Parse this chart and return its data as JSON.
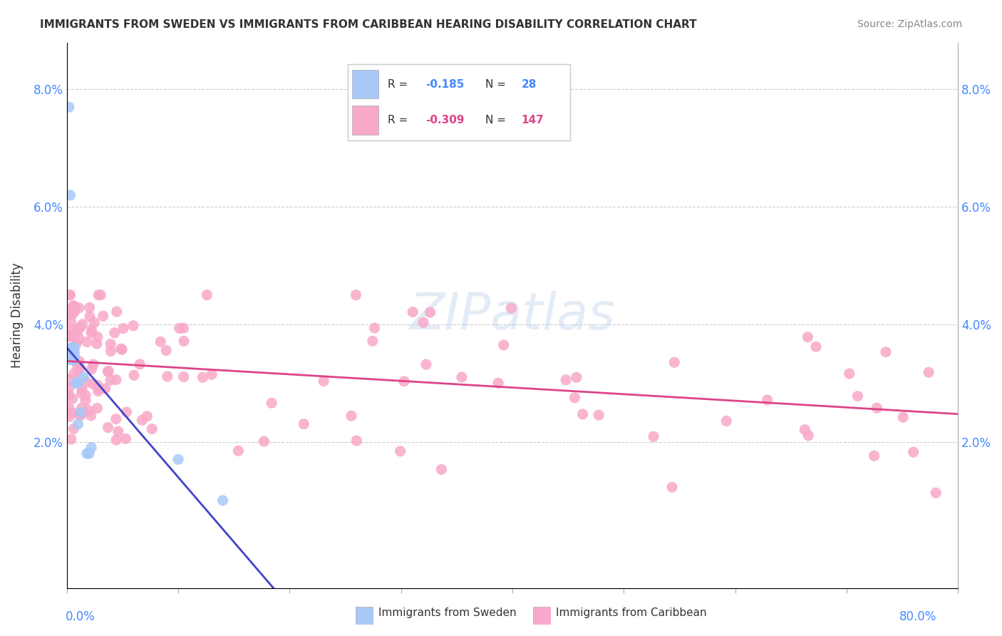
{
  "title": "IMMIGRANTS FROM SWEDEN VS IMMIGRANTS FROM CARIBBEAN HEARING DISABILITY CORRELATION CHART",
  "source": "Source: ZipAtlas.com",
  "ylabel": "Hearing Disability",
  "xlim": [
    0.0,
    0.8
  ],
  "ylim": [
    -0.005,
    0.088
  ],
  "blue_color": "#a8c8f8",
  "pink_color": "#f8a8c8",
  "trendline_blue": "#4444cc",
  "trendline_pink": "#dd4488",
  "trendline_dashed": "#aaaaaa",
  "sweden_x": [
    0.002,
    0.003,
    0.004,
    0.004,
    0.005,
    0.005,
    0.005,
    0.005,
    0.006,
    0.006,
    0.006,
    0.006,
    0.007,
    0.007,
    0.007,
    0.008,
    0.009,
    0.01,
    0.01,
    0.012,
    0.015,
    0.018,
    0.02,
    0.022,
    0.004,
    0.003,
    0.1,
    0.14
  ],
  "sweden_y": [
    0.077,
    0.062,
    0.036,
    0.035,
    0.036,
    0.035,
    0.034,
    0.034,
    0.035,
    0.034,
    0.034,
    0.034,
    0.036,
    0.035,
    0.034,
    0.03,
    0.03,
    0.03,
    0.023,
    0.025,
    0.031,
    0.018,
    0.018,
    0.019,
    0.034,
    0.034,
    0.017,
    0.01
  ],
  "ytick_vals": [
    0.02,
    0.04,
    0.06,
    0.08
  ],
  "ytick_labels": [
    "2.0%",
    "4.0%",
    "6.0%",
    "8.0%"
  ]
}
